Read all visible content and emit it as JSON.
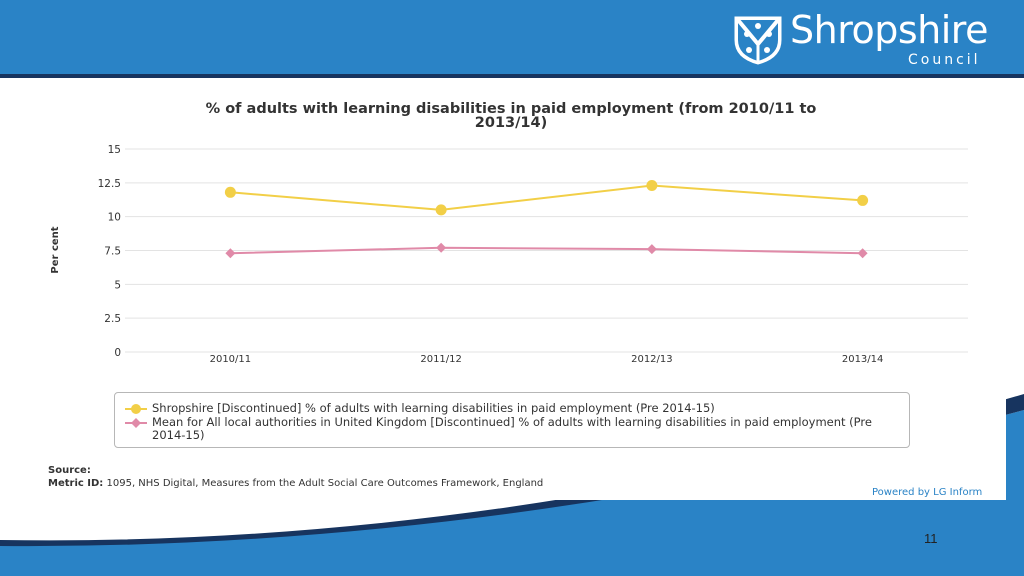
{
  "brand": {
    "name": "Shropshire",
    "sub": "Council",
    "colors": {
      "band": "#2a83c6",
      "dark": "#17345f"
    }
  },
  "chart_data": {
    "type": "line",
    "title": "% of adults with learning disabilities in paid employment (from 2010/11 to 2013/14)",
    "xlabel": "",
    "ylabel": "Per cent",
    "categories": [
      "2010/11",
      "2011/12",
      "2012/13",
      "2013/14"
    ],
    "ylim": [
      0,
      15
    ],
    "yticks": [
      0,
      2.5,
      5,
      7.5,
      10,
      12.5,
      15
    ],
    "ytick_labels": [
      "0",
      "2.5",
      "5",
      "7.5",
      "10",
      "12.5",
      "15"
    ],
    "grid": true,
    "series": [
      {
        "name": "Shropshire [Discontinued] % of adults with learning disabilities in paid employment (Pre 2014-15)",
        "values": [
          11.8,
          10.5,
          12.3,
          11.2
        ],
        "color": "#f2cf47",
        "marker": "circle"
      },
      {
        "name": "Mean for All local authorities in United Kingdom [Discontinued] % of adults with learning disabilities in paid employment (Pre 2014-15)",
        "values": [
          7.3,
          7.7,
          7.6,
          7.3
        ],
        "color": "#e08aa8",
        "marker": "diamond"
      }
    ],
    "legend_position": "bottom"
  },
  "source": {
    "label": "Source:",
    "metric_label": "Metric ID:",
    "metric_text": "1095, NHS Digital, Measures from the Adult Social Care Outcomes Framework, England"
  },
  "powered_by": "Powered by LG Inform",
  "slide_number": "11"
}
